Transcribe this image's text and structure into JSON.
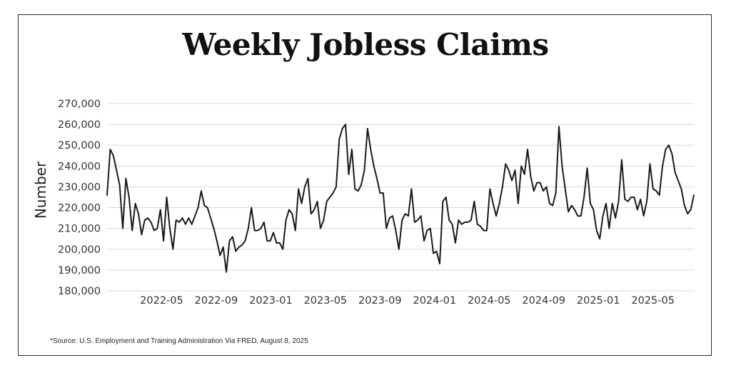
{
  "chart_data": {
    "type": "line",
    "title": "Weekly Jobless Claims",
    "ylabel": "Number",
    "xlabel": "",
    "ylim": [
      180000,
      270000
    ],
    "y_ticks": [
      {
        "value": 180000,
        "label": "180,000"
      },
      {
        "value": 190000,
        "label": "190,000"
      },
      {
        "value": 200000,
        "label": "200,000"
      },
      {
        "value": 210000,
        "label": "210,000"
      },
      {
        "value": 220000,
        "label": "220,000"
      },
      {
        "value": 230000,
        "label": "230,000"
      },
      {
        "value": 240000,
        "label": "240,000"
      },
      {
        "value": 250000,
        "label": "250,000"
      },
      {
        "value": 260000,
        "label": "260,000"
      },
      {
        "value": 270000,
        "label": "270,000"
      }
    ],
    "x_range": [
      "2022-01",
      "2025-08"
    ],
    "x_ticks": [
      "2022-05",
      "2022-09",
      "2023-01",
      "2023-05",
      "2023-09",
      "2024-01",
      "2024-05",
      "2024-09",
      "2025-01",
      "2025-05"
    ],
    "grid": true,
    "line_color": "#1a1a1a",
    "series": [
      {
        "values": [
          226000,
          248000,
          245000,
          238000,
          231000,
          210000,
          234000,
          225000,
          209000,
          222000,
          217000,
          207000,
          214000,
          215000,
          213000,
          209000,
          210000,
          219000,
          204000,
          225000,
          210000,
          200000,
          214000,
          213000,
          215000,
          212000,
          215000,
          212000,
          216000,
          220000,
          228000,
          221000,
          220000,
          215000,
          210000,
          204000,
          197000,
          201000,
          189000,
          204000,
          206000,
          199000,
          201000,
          202000,
          204000,
          210000,
          220000,
          209000,
          209000,
          210000,
          213000,
          204000,
          204000,
          208000,
          203000,
          203000,
          200000,
          214000,
          219000,
          217000,
          209000,
          229000,
          222000,
          230000,
          234000,
          217000,
          219000,
          223000,
          210000,
          214000,
          223000,
          225000,
          227000,
          230000,
          253000,
          258000,
          260000,
          236000,
          248000,
          229000,
          228000,
          231000,
          238000,
          258000,
          248000,
          240000,
          234000,
          227000,
          227000,
          210000,
          215000,
          216000,
          209000,
          200000,
          214000,
          217000,
          216000,
          229000,
          213000,
          214000,
          216000,
          204000,
          209000,
          210000,
          198000,
          199000,
          193000,
          223000,
          225000,
          214000,
          212000,
          203000,
          214000,
          212000,
          213000,
          213000,
          214000,
          223000,
          212000,
          211000,
          209000,
          209000,
          229000,
          222000,
          216000,
          222000,
          230000,
          241000,
          238000,
          233000,
          238000,
          222000,
          240000,
          236000,
          248000,
          235000,
          228000,
          232000,
          232000,
          228000,
          230000,
          222000,
          221000,
          227000,
          259000,
          240000,
          229000,
          218000,
          221000,
          219000,
          216000,
          216000,
          225000,
          239000,
          222000,
          219000,
          209000,
          205000,
          216000,
          222000,
          210000,
          222000,
          215000,
          223000,
          243000,
          224000,
          223000,
          225000,
          225000,
          219000,
          224000,
          216000,
          223000,
          241000,
          229000,
          228000,
          226000,
          240000,
          248000,
          250000,
          246000,
          237000,
          233000,
          229000,
          221000,
          217000,
          219000,
          226000
        ]
      }
    ]
  },
  "footer": {
    "source": "*Source: U.S. Employment and Training Administration Via FRED, August 8, 2025"
  }
}
